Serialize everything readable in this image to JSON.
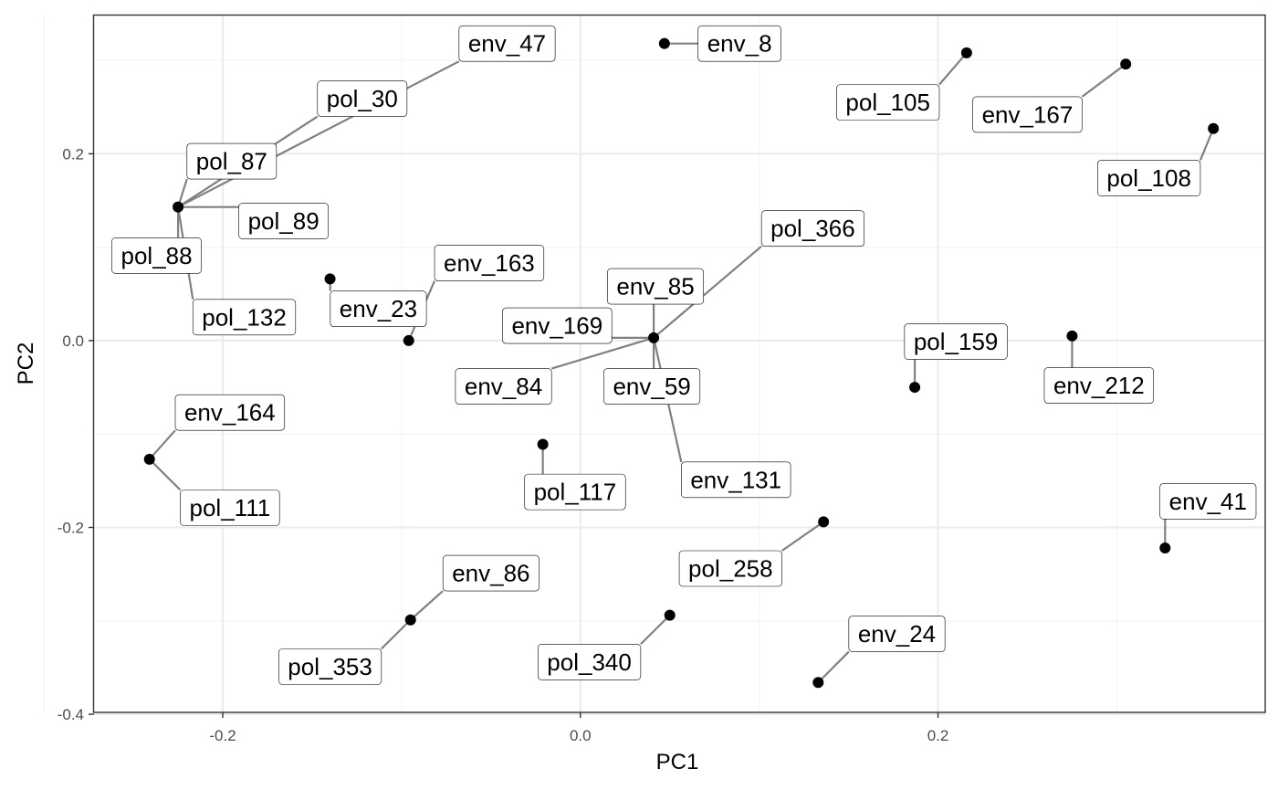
{
  "chart_data": {
    "type": "scatter",
    "title": "",
    "xlabel": "PC1",
    "ylabel": "PC2",
    "xlim": [
      -0.272,
      0.383
    ],
    "ylim": [
      -0.398,
      0.348
    ],
    "x_ticks": [
      -0.2,
      0.0,
      0.2
    ],
    "x_tick_labels": [
      "-0.2",
      "0.0",
      "0.2"
    ],
    "y_ticks": [
      -0.4,
      -0.2,
      0.0,
      0.2
    ],
    "y_tick_labels": [
      "-0.4",
      "-0.2",
      "0.0",
      "0.2"
    ],
    "grid": true,
    "legend": "none",
    "point_color": "#000000",
    "connector_color": "#808080",
    "points": [
      {
        "x": -0.225,
        "y": 0.143
      },
      {
        "x": -0.14,
        "y": 0.066
      },
      {
        "x": -0.096,
        "y": 0.0
      },
      {
        "x": -0.241,
        "y": -0.127
      },
      {
        "x": -0.095,
        "y": -0.299
      },
      {
        "x": -0.021,
        "y": -0.111
      },
      {
        "x": 0.047,
        "y": 0.318
      },
      {
        "x": 0.041,
        "y": 0.003
      },
      {
        "x": 0.05,
        "y": -0.294
      },
      {
        "x": 0.133,
        "y": -0.366
      },
      {
        "x": 0.136,
        "y": -0.194
      },
      {
        "x": 0.187,
        "y": -0.05
      },
      {
        "x": 0.216,
        "y": 0.308
      },
      {
        "x": 0.275,
        "y": 0.005
      },
      {
        "x": 0.305,
        "y": 0.296
      },
      {
        "x": 0.327,
        "y": -0.222
      },
      {
        "x": 0.354,
        "y": 0.227
      }
    ],
    "labels": [
      {
        "text": "env_47",
        "x": -0.041,
        "y": 0.318,
        "point": 0
      },
      {
        "text": "pol_30",
        "x": -0.122,
        "y": 0.259,
        "point": 0
      },
      {
        "text": "pol_87",
        "x": -0.195,
        "y": 0.192,
        "point": 0
      },
      {
        "text": "pol_89",
        "x": -0.166,
        "y": 0.128,
        "point": 0
      },
      {
        "text": "pol_88",
        "x": -0.237,
        "y": 0.091,
        "point": 0
      },
      {
        "text": "pol_132",
        "x": -0.188,
        "y": 0.025,
        "point": 0
      },
      {
        "text": "env_23",
        "x": -0.113,
        "y": 0.034,
        "point": 1
      },
      {
        "text": "env_163",
        "x": -0.051,
        "y": 0.083,
        "point": 2
      },
      {
        "text": "env_164",
        "x": -0.196,
        "y": -0.077,
        "point": 3
      },
      {
        "text": "pol_111",
        "x": -0.196,
        "y": -0.179,
        "point": 3
      },
      {
        "text": "env_86",
        "x": -0.05,
        "y": -0.249,
        "point": 4
      },
      {
        "text": "pol_353",
        "x": -0.14,
        "y": -0.349,
        "point": 4
      },
      {
        "text": "pol_117",
        "x": -0.003,
        "y": -0.162,
        "point": 5
      },
      {
        "text": "env_8",
        "x": 0.089,
        "y": 0.318,
        "point": 6
      },
      {
        "text": "pol_366",
        "x": 0.13,
        "y": 0.12,
        "point": 7
      },
      {
        "text": "env_85",
        "x": 0.042,
        "y": 0.058,
        "point": 7
      },
      {
        "text": "env_169",
        "x": -0.013,
        "y": 0.016,
        "point": 7
      },
      {
        "text": "env_84",
        "x": -0.043,
        "y": -0.049,
        "point": 7
      },
      {
        "text": "env_59",
        "x": 0.04,
        "y": -0.049,
        "point": 7
      },
      {
        "text": "env_131",
        "x": 0.087,
        "y": -0.149,
        "point": 7
      },
      {
        "text": "pol_340",
        "x": 0.005,
        "y": -0.344,
        "point": 8
      },
      {
        "text": "env_24",
        "x": 0.177,
        "y": -0.314,
        "point": 9
      },
      {
        "text": "pol_258",
        "x": 0.084,
        "y": -0.244,
        "point": 10
      },
      {
        "text": "pol_159",
        "x": 0.21,
        "y": -0.001,
        "point": 11
      },
      {
        "text": "pol_105",
        "x": 0.172,
        "y": 0.255,
        "point": 12
      },
      {
        "text": "env_212",
        "x": 0.29,
        "y": -0.048,
        "point": 13
      },
      {
        "text": "env_167",
        "x": 0.25,
        "y": 0.242,
        "point": 14
      },
      {
        "text": "env_41",
        "x": 0.351,
        "y": -0.172,
        "point": 15
      },
      {
        "text": "pol_108",
        "x": 0.318,
        "y": 0.174,
        "point": 16
      }
    ]
  }
}
